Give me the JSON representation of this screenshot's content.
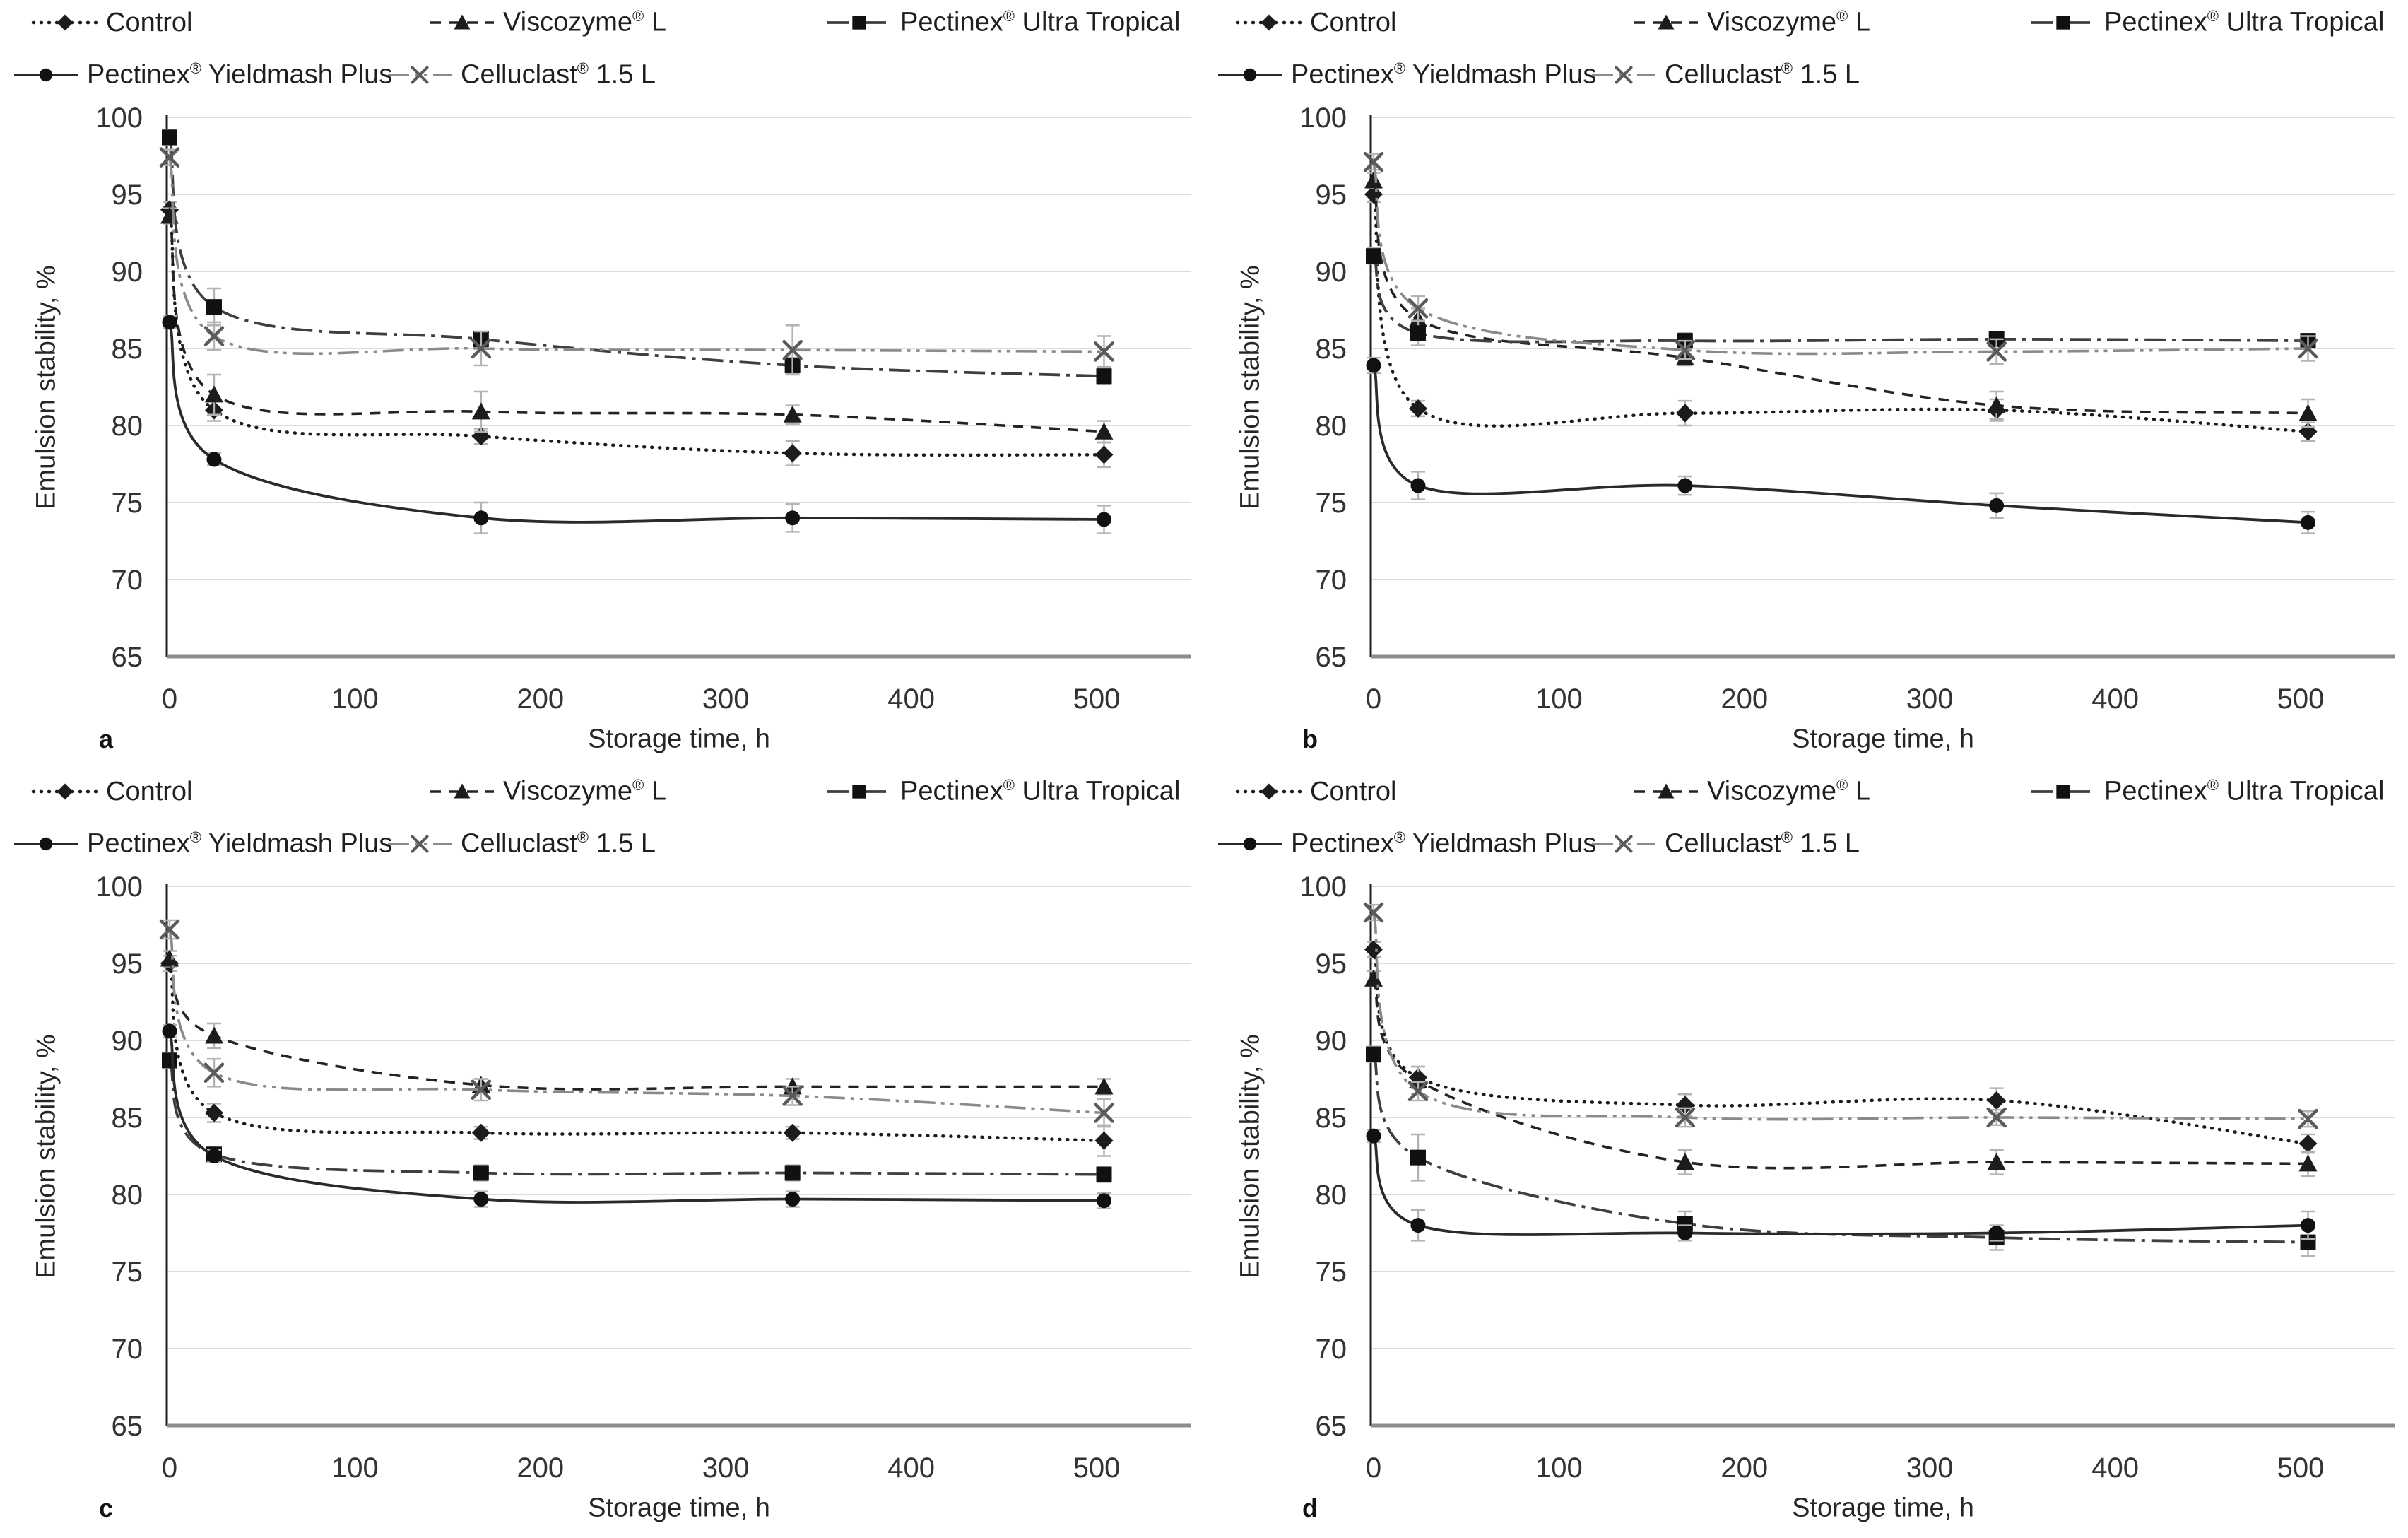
{
  "figure": {
    "ylabel": "Emulsion stability, %",
    "xlabel": "Storage time, h"
  },
  "legend": {
    "items": [
      {
        "label": "Control",
        "marker": "diamond",
        "line": "dotted",
        "color": "#1c1c1c",
        "marker_color": "#1c1c1c"
      },
      {
        "label": "Viscozyme® L",
        "marker": "triangle",
        "line": "dashed",
        "color": "#232323",
        "marker_color": "#1c1c1c"
      },
      {
        "label": "Pectinex® Ultra Tropical",
        "marker": "square",
        "line": "dashdot",
        "color": "#3f3f3f",
        "marker_color": "#111111"
      },
      {
        "label": "Pectinex® Yieldmash Plus",
        "marker": "circle",
        "line": "solid",
        "color": "#2a2a2a",
        "marker_color": "#111111"
      },
      {
        "label": "Celluclast® 1.5 L",
        "marker": "x",
        "line": "dashdotdot",
        "color": "#8a8a8a",
        "marker_color": "#5a5a5a"
      }
    ]
  },
  "axes": {
    "x": {
      "min": 0,
      "max": 550,
      "ticks": [
        0,
        100,
        200,
        300,
        400,
        500
      ]
    },
    "y": {
      "min": 65,
      "max": 100,
      "ticks": [
        65,
        70,
        75,
        80,
        85,
        90,
        95,
        100
      ]
    }
  },
  "colors": {
    "gridline": "#dcdcdc",
    "x_axis": "#8c8c8c",
    "y_axis": "#1f1f1f",
    "error_bar": "#b3b3b3",
    "tick_label": "#333333"
  },
  "chart_data": [
    {
      "panel": "a",
      "type": "line",
      "x": [
        0,
        24,
        168,
        336,
        504
      ],
      "series": [
        {
          "name": "Control",
          "values": [
            94.0,
            81.0,
            79.3,
            78.2,
            78.1
          ],
          "err": [
            0.5,
            0.7,
            0.5,
            0.8,
            0.8
          ]
        },
        {
          "name": "Viscozyme® L",
          "values": [
            93.6,
            82.0,
            80.9,
            80.7,
            79.6
          ],
          "err": [
            0.5,
            1.3,
            1.3,
            0.6,
            0.7
          ]
        },
        {
          "name": "Pectinex® Ultra Tropical",
          "values": [
            98.7,
            87.7,
            85.6,
            83.9,
            83.2
          ],
          "err": [
            0.5,
            1.2,
            0.5,
            0.5,
            0.5
          ]
        },
        {
          "name": "Pectinex® Yieldmash Plus",
          "values": [
            86.7,
            77.8,
            74.0,
            74.0,
            73.9
          ],
          "err": [
            0.4,
            0.4,
            1.0,
            0.9,
            0.9
          ]
        },
        {
          "name": "Celluclast® 1.5 L",
          "values": [
            97.4,
            85.8,
            85.0,
            84.9,
            84.8
          ],
          "err": [
            0.5,
            0.9,
            1.1,
            1.6,
            1.0
          ]
        }
      ]
    },
    {
      "panel": "b",
      "type": "line",
      "x": [
        0,
        24,
        168,
        336,
        504
      ],
      "series": [
        {
          "name": "Control",
          "values": [
            95.0,
            81.1,
            80.8,
            81.0,
            79.6
          ],
          "err": [
            0.5,
            0.5,
            0.8,
            0.7,
            0.6
          ]
        },
        {
          "name": "Viscozyme® L",
          "values": [
            95.9,
            86.9,
            84.4,
            81.3,
            80.8
          ],
          "err": [
            0.5,
            0.7,
            0.5,
            0.9,
            0.9
          ]
        },
        {
          "name": "Pectinex® Ultra Tropical",
          "values": [
            91.0,
            86.0,
            85.5,
            85.6,
            85.5
          ],
          "err": [
            0.5,
            0.8,
            0.5,
            0.4,
            0.4
          ]
        },
        {
          "name": "Pectinex® Yieldmash Plus",
          "values": [
            83.9,
            76.1,
            76.1,
            74.8,
            73.7
          ],
          "err": [
            0.5,
            0.9,
            0.6,
            0.8,
            0.7
          ]
        },
        {
          "name": "Celluclast® 1.5 L",
          "values": [
            97.1,
            87.6,
            84.9,
            84.8,
            85.0
          ],
          "err": [
            0.5,
            0.8,
            0.6,
            0.8,
            0.8
          ]
        }
      ]
    },
    {
      "panel": "c",
      "type": "line",
      "x": [
        0,
        24,
        168,
        336,
        504
      ],
      "series": [
        {
          "name": "Control",
          "values": [
            95.0,
            85.3,
            84.0,
            84.0,
            83.5
          ],
          "err": [
            0.5,
            0.6,
            0.4,
            0.4,
            1.0
          ]
        },
        {
          "name": "Viscozyme® L",
          "values": [
            95.3,
            90.3,
            87.1,
            87.0,
            87.0
          ],
          "err": [
            0.5,
            0.8,
            0.4,
            0.5,
            0.5
          ]
        },
        {
          "name": "Pectinex® Ultra Tropical",
          "values": [
            88.7,
            82.6,
            81.4,
            81.4,
            81.3
          ],
          "err": [
            0.5,
            0.5,
            0.5,
            0.5,
            0.5
          ]
        },
        {
          "name": "Pectinex® Yieldmash Plus",
          "values": [
            90.6,
            82.5,
            79.7,
            79.7,
            79.6
          ],
          "err": [
            0.4,
            0.4,
            0.5,
            0.5,
            0.5
          ]
        },
        {
          "name": "Celluclast® 1.5 L",
          "values": [
            97.2,
            87.9,
            86.8,
            86.4,
            85.3
          ],
          "err": [
            0.6,
            0.9,
            0.7,
            0.6,
            0.9
          ]
        }
      ]
    },
    {
      "panel": "d",
      "type": "line",
      "x": [
        0,
        24,
        168,
        336,
        504
      ],
      "series": [
        {
          "name": "Control",
          "values": [
            95.9,
            87.6,
            85.8,
            86.1,
            83.3
          ],
          "err": [
            0.5,
            0.7,
            0.7,
            0.8,
            0.6
          ]
        },
        {
          "name": "Viscozyme® L",
          "values": [
            94.0,
            87.4,
            82.1,
            82.1,
            82.0
          ],
          "err": [
            0.5,
            0.9,
            0.8,
            0.8,
            0.8
          ]
        },
        {
          "name": "Pectinex® Ultra Tropical",
          "values": [
            89.1,
            82.4,
            78.1,
            77.2,
            76.9
          ],
          "err": [
            0.5,
            1.5,
            0.8,
            0.8,
            0.9
          ]
        },
        {
          "name": "Pectinex® Yieldmash Plus",
          "values": [
            83.8,
            78.0,
            77.5,
            77.5,
            78.0
          ],
          "err": [
            0.4,
            1.0,
            0.5,
            0.5,
            0.9
          ]
        },
        {
          "name": "Celluclast® 1.5 L",
          "values": [
            98.3,
            86.7,
            85.0,
            85.0,
            84.9
          ],
          "err": [
            0.5,
            0.6,
            0.6,
            0.5,
            0.5
          ]
        }
      ]
    }
  ]
}
